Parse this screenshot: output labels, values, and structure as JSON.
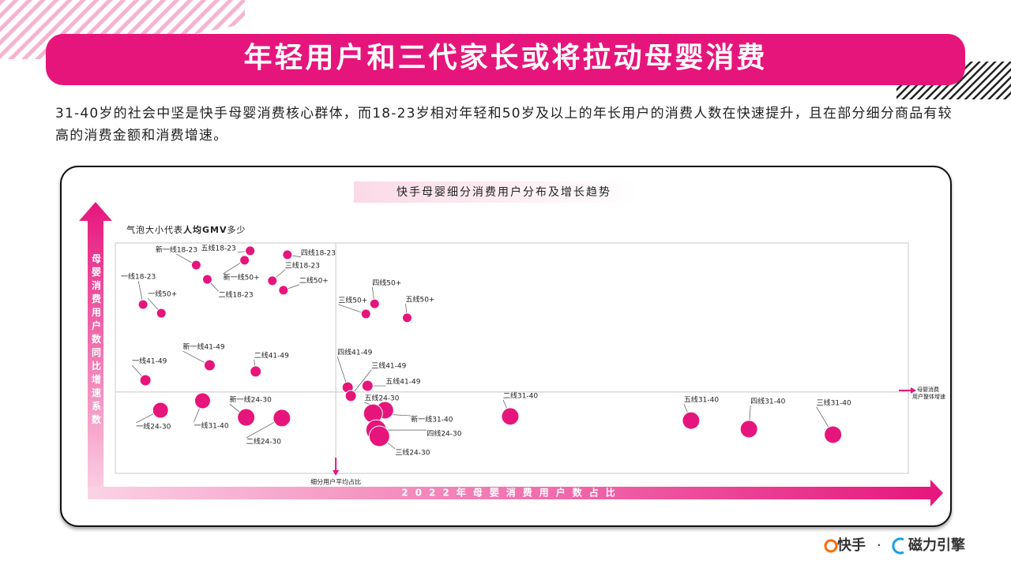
{
  "header": {
    "title": "年轻用户和三代家长或将拉动母婴消费"
  },
  "intro": "31-40岁的社会中坚是快手母婴消费核心群体，而18-23岁相对年轻和50岁及以上的年长用户的消费人数在快速提升，且在部分细分商品有较高的消费金额和消费增速。",
  "chart_data": {
    "type": "scatter",
    "title": "快手母婴细分消费用户分布及增长趋势",
    "note": [
      "气泡大小代表",
      "人均GMV",
      "多少"
    ],
    "x_label": "2022年母婴消费用户数占比",
    "y_label": "母婴消费用户数同比增速系数",
    "color": "#e6157c",
    "xlim": [
      0,
      100
    ],
    "ylim": [
      0,
      100
    ],
    "x_reference": {
      "value": 27.8,
      "label": "细分用户平均占比"
    },
    "y_reference": {
      "value": 35.3,
      "label": [
        "母婴消费",
        "用户整体增速"
      ]
    },
    "point_labels": [
      "新一线18-23",
      "五线18-23",
      "四线18-23",
      "三线18-23",
      "新一线50+",
      "二线18-23",
      "二线50+",
      "一线18-23",
      "一线50+",
      "四线50+",
      "三线50+",
      "五线50+",
      "四线41-49",
      "三线41-49",
      "五线41-49",
      "新一线41-49",
      "二线41-49",
      "一线41-49",
      "一线24-30",
      "一线31-40",
      "新一线24-30",
      "二线24-30",
      "五线24-30",
      "新一线31-40",
      "四线24-30",
      "三线24-30",
      "二线31-40",
      "五线31-40",
      "四线31-40",
      "三线31-40"
    ],
    "x": [
      10.2,
      17.0,
      21.7,
      19.8,
      16.3,
      11.6,
      21.2,
      3.5,
      5.8,
      32.7,
      31.6,
      36.8,
      29.3,
      29.7,
      31.8,
      11.9,
      17.7,
      3.8,
      5.7,
      11.0,
      16.5,
      21.0,
      34.0,
      32.5,
      32.9,
      33.3,
      49.8,
      72.6,
      79.9,
      90.5
    ],
    "values": [
      90.4,
      96.6,
      94.9,
      83.6,
      92.5,
      84.2,
      79.5,
      73.3,
      69.5,
      73.6,
      69.2,
      67.5,
      37.3,
      33.6,
      38.0,
      46.9,
      44.2,
      40.4,
      27.4,
      31.5,
      24.3,
      24.0,
      27.4,
      26.0,
      18.8,
      16.1,
      24.7,
      22.9,
      19.2,
      16.8
    ],
    "sizes": [
      6,
      6,
      6,
      6,
      6,
      6,
      6,
      6,
      6,
      6,
      6,
      6,
      7,
      7,
      7,
      7,
      7,
      7,
      10,
      10,
      11,
      11,
      11,
      12,
      13,
      13,
      11,
      11,
      11,
      11
    ]
  },
  "footer": {
    "brand_1": "快手",
    "separator": "·",
    "brand_2": "磁力引擎"
  }
}
